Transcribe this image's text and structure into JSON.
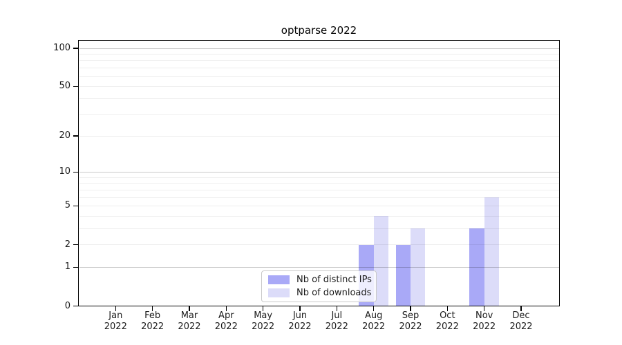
{
  "title": "optparse 2022",
  "chart_data": {
    "type": "bar",
    "title": "optparse 2022",
    "categories": [
      "Jan",
      "Feb",
      "Mar",
      "Apr",
      "May",
      "Jun",
      "Jul",
      "Aug",
      "Sep",
      "Oct",
      "Nov",
      "Dec"
    ],
    "x_tick_year": "2022",
    "series": [
      {
        "name": "Nb of distinct IPs",
        "color": "#a9a9f7",
        "values": [
          0,
          0,
          0,
          0,
          0,
          0,
          0,
          2,
          2,
          0,
          3,
          0
        ]
      },
      {
        "name": "Nb of downloads",
        "color": "#dcdcf9",
        "values": [
          0,
          0,
          0,
          0,
          0,
          0,
          0,
          4,
          3,
          0,
          6,
          0
        ]
      }
    ],
    "yscale": "log1p",
    "ylim": [
      0,
      115
    ],
    "yticks": [
      0,
      1,
      2,
      5,
      10,
      20,
      50,
      100
    ],
    "major_gridlines": [
      1,
      10,
      100
    ],
    "minor_gridlines": [
      2,
      3,
      4,
      5,
      6,
      7,
      8,
      9,
      20,
      30,
      40,
      50,
      60,
      70,
      80,
      90
    ],
    "grid": "on",
    "legend_position": "lower center",
    "colors": {
      "axis": "#000000",
      "major_grid": "#c9c9c9",
      "minor_grid": "#ededed",
      "legend_border": "#c9c9c9"
    }
  }
}
